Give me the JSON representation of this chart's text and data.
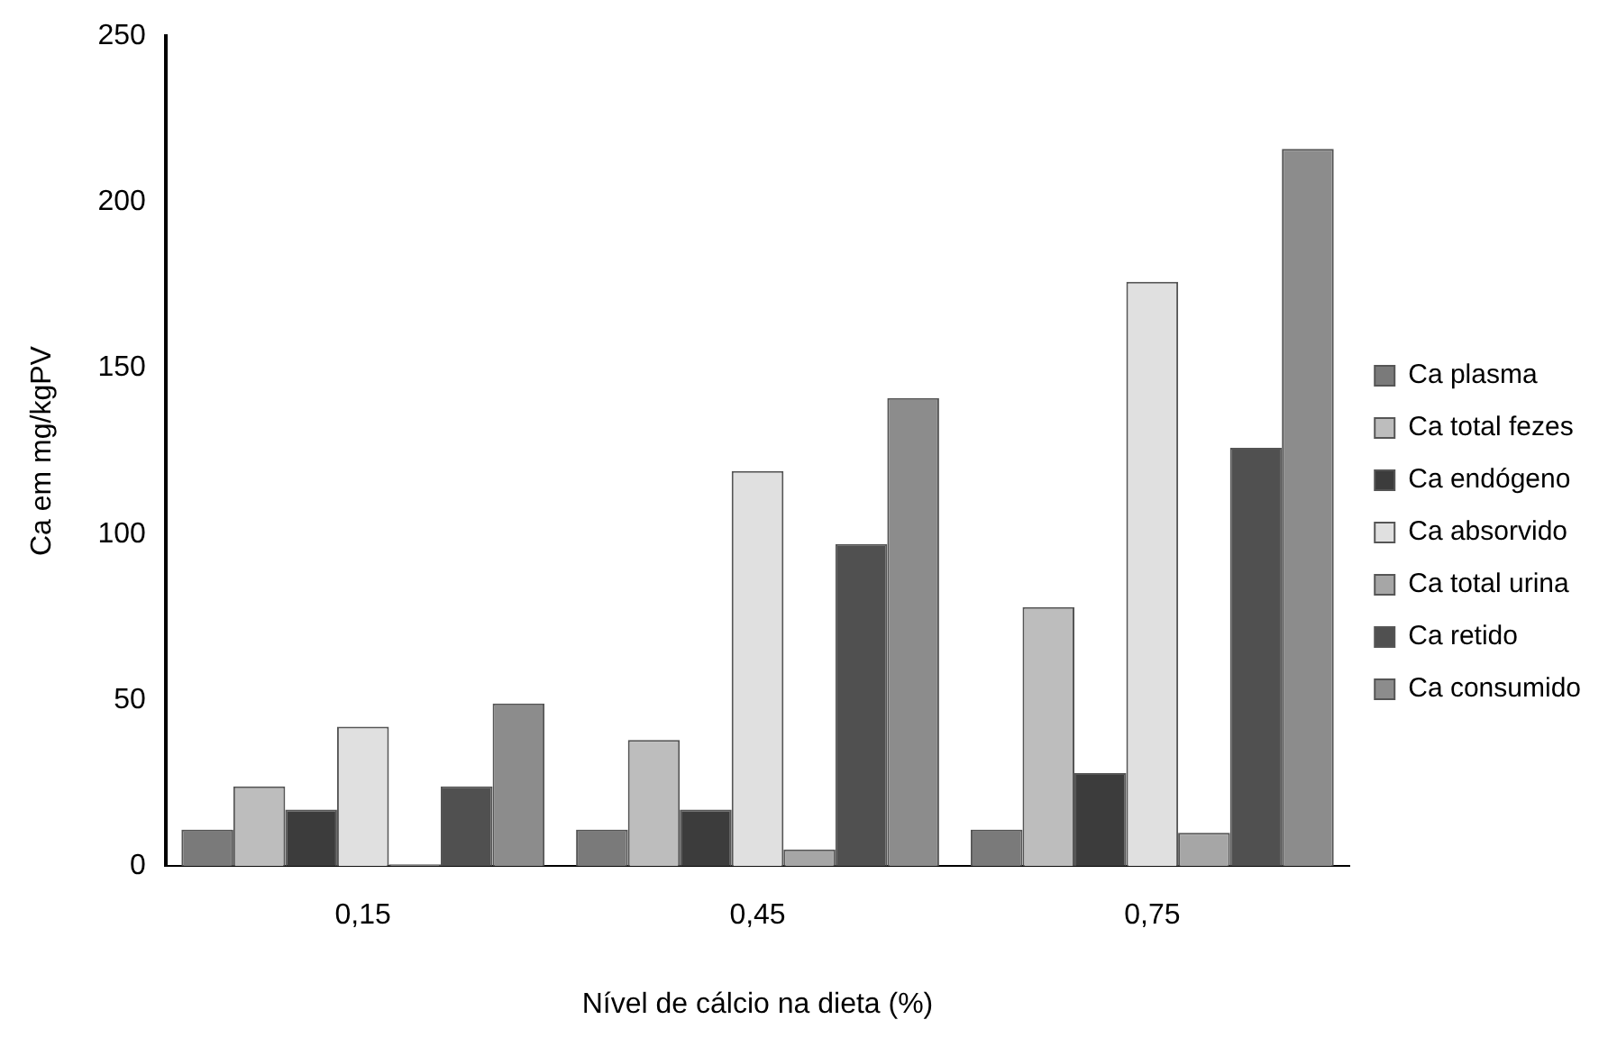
{
  "chart_data": {
    "type": "bar",
    "xlabel": "Nível de cálcio na dieta (%)",
    "ylabel": "Ca em mg/kgPV",
    "categories": [
      "0,15",
      "0,45",
      "0,75"
    ],
    "series": [
      {
        "name": "Ca plasma",
        "color": "#7a7a7a",
        "values": [
          11,
          11,
          11
        ]
      },
      {
        "name": "Ca total fezes",
        "color": "#bdbdbd",
        "values": [
          24,
          38,
          78
        ]
      },
      {
        "name": "Ca endógeno",
        "color": "#3c3c3c",
        "values": [
          17,
          17,
          28
        ]
      },
      {
        "name": "Ca absorvido",
        "color": "#e0e0e0",
        "values": [
          42,
          119,
          176
        ]
      },
      {
        "name": "Ca total urina",
        "color": "#a6a6a6",
        "values": [
          0.5,
          5,
          10
        ]
      },
      {
        "name": "Ca retido",
        "color": "#505050",
        "values": [
          24,
          97,
          126
        ]
      },
      {
        "name": "Ca consumido",
        "color": "#8c8c8c",
        "values": [
          49,
          141,
          216
        ]
      }
    ],
    "ylim": [
      0,
      250
    ],
    "yticks": [
      0,
      50,
      100,
      150,
      200,
      250
    ],
    "grid": false,
    "legend": "right"
  }
}
